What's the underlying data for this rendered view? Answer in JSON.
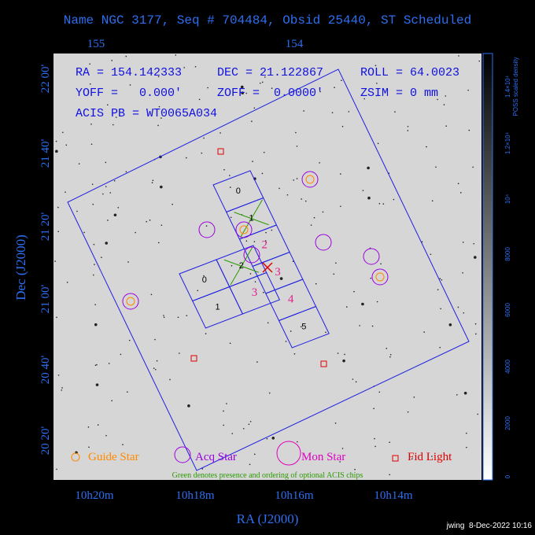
{
  "header": {
    "title": "Name NGC 3177, Seq # 704484, Obsid 25440, ST Scheduled"
  },
  "top_ticks": [
    "155",
    "154"
  ],
  "left_ticks": [
    "22 00'",
    "21 40'",
    "21 20'",
    "21 00'",
    "20 40'",
    "20 20'"
  ],
  "bottom_ticks": [
    "10h20m",
    "10h18m",
    "10h16m",
    "10h14m"
  ],
  "x_label": "RA (J2000)",
  "y_label": "Dec (J2000)",
  "info": [
    [
      "RA = 154.142333",
      "DEC = 21.122867",
      "ROLL = 64.0023"
    ],
    [
      "YOFF =   0.000'",
      "ZOFF =  0.0000'",
      "ZSIM = 0 mm"
    ],
    [
      "ACIS PB = WT0065A034"
    ]
  ],
  "chips": {
    "s": [
      "0",
      "1",
      "2",
      "3",
      "4",
      "5"
    ],
    "i": [
      "0",
      "1",
      "2",
      "3"
    ]
  },
  "legend": [
    "Guide Star",
    "Acq Star",
    "Mon Star",
    "Fid Light"
  ],
  "note": "Green denotes presence and ordering of optional ACIS chips",
  "colorbar": {
    "label": "POSS scaled density",
    "ticks": [
      "0",
      "2000",
      "4000",
      "6000",
      "8000",
      "10⁴",
      "1.2×10⁴",
      "1.4×10⁴"
    ]
  },
  "footer": "jwing  8-Dec-2022 10:16"
}
